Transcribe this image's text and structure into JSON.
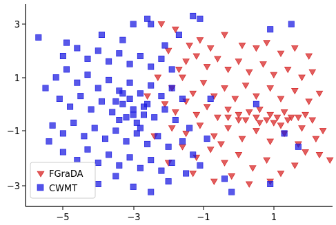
{
  "chart_data": {
    "type": "scatter",
    "title": "",
    "xlabel": "",
    "ylabel": "",
    "xlim": [
      -6.0,
      2.7
    ],
    "ylim": [
      -3.55,
      3.55
    ],
    "xticks": [
      -5,
      -3,
      -1,
      1
    ],
    "yticks": [
      -3,
      -1,
      1,
      3
    ],
    "xtick_labels": [
      "−5",
      "−3",
      "−1",
      "1"
    ],
    "ytick_labels": [
      "−3",
      "−1",
      "1",
      "3"
    ],
    "legend_position": "lower-left",
    "series": [
      {
        "name": "FGraDA",
        "marker": "triangle-down",
        "color": "#d62020",
        "points": [
          [
            -2.2,
            3.0
          ],
          [
            -1.8,
            2.8
          ],
          [
            -1.4,
            2.2
          ],
          [
            -1.1,
            2.4
          ],
          [
            -0.8,
            2.1
          ],
          [
            -0.4,
            2.6
          ],
          [
            0.1,
            2.2
          ],
          [
            0.5,
            2.1
          ],
          [
            0.8,
            2.3
          ],
          [
            1.2,
            1.9
          ],
          [
            1.6,
            2.1
          ],
          [
            2.0,
            1.8
          ],
          [
            -2.0,
            2.0
          ],
          [
            -1.5,
            1.6
          ],
          [
            -1.2,
            1.8
          ],
          [
            -0.9,
            1.4
          ],
          [
            -0.6,
            1.7
          ],
          [
            -0.3,
            1.3
          ],
          [
            0.0,
            1.6
          ],
          [
            0.3,
            1.2
          ],
          [
            0.7,
            1.5
          ],
          [
            1.0,
            1.1
          ],
          [
            1.4,
            1.3
          ],
          [
            1.8,
            1.0
          ],
          [
            2.1,
            1.2
          ],
          [
            -2.3,
            1.0
          ],
          [
            -1.9,
            0.6
          ],
          [
            -1.6,
            1.0
          ],
          [
            -1.3,
            0.4
          ],
          [
            -1.0,
            0.8
          ],
          [
            -0.7,
            0.3
          ],
          [
            -0.4,
            0.6
          ],
          [
            -0.1,
            0.2
          ],
          [
            0.2,
            0.7
          ],
          [
            0.5,
            0.3
          ],
          [
            0.9,
            0.6
          ],
          [
            1.2,
            0.2
          ],
          [
            1.6,
            0.5
          ],
          [
            2.0,
            0.1
          ],
          [
            2.3,
            0.4
          ],
          [
            -2.1,
            0.0
          ],
          [
            -1.8,
            -0.3
          ],
          [
            -1.5,
            0.1
          ],
          [
            -1.2,
            -0.4
          ],
          [
            -0.9,
            -0.1
          ],
          [
            -0.6,
            -0.5
          ],
          [
            -0.3,
            -0.2
          ],
          [
            0.0,
            -0.6
          ],
          [
            0.3,
            -0.3
          ],
          [
            0.6,
            -0.7
          ],
          [
            0.9,
            -0.4
          ],
          [
            1.2,
            -0.8
          ],
          [
            1.5,
            -0.5
          ],
          [
            1.8,
            -0.9
          ],
          [
            2.1,
            -0.6
          ],
          [
            2.4,
            -1.0
          ],
          [
            -1.9,
            -0.9
          ],
          [
            -1.5,
            -1.1
          ],
          [
            -1.1,
            -0.8
          ],
          [
            -0.7,
            -1.2
          ],
          [
            -0.3,
            -0.9
          ],
          [
            0.1,
            -1.3
          ],
          [
            0.5,
            -1.0
          ],
          [
            0.9,
            -1.4
          ],
          [
            1.3,
            -1.1
          ],
          [
            1.7,
            -1.5
          ],
          [
            2.2,
            -1.3
          ],
          [
            -1.6,
            -1.6
          ],
          [
            -1.2,
            -2.0
          ],
          [
            -0.8,
            -1.7
          ],
          [
            -0.4,
            -2.2
          ],
          [
            0.0,
            -1.9
          ],
          [
            0.4,
            -2.4
          ],
          [
            0.8,
            -2.1
          ],
          [
            1.2,
            -2.6
          ],
          [
            1.6,
            -2.3
          ],
          [
            -1.3,
            -2.6
          ],
          [
            -0.7,
            -2.9
          ],
          [
            -0.2,
            -2.7
          ],
          [
            0.3,
            -3.0
          ],
          [
            0.9,
            -2.9
          ],
          [
            0.2,
            -0.6
          ],
          [
            0.5,
            -0.5
          ],
          [
            0.8,
            -0.6
          ],
          [
            1.1,
            -0.5
          ],
          [
            1.4,
            -0.6
          ],
          [
            1.7,
            -0.5
          ],
          [
            0.0,
            -0.4
          ],
          [
            -0.3,
            -0.5
          ],
          [
            1.0,
            -0.7
          ],
          [
            1.3,
            -0.3
          ],
          [
            0.6,
            -0.2
          ],
          [
            1.9,
            -0.4
          ],
          [
            2.6,
            -2.1
          ],
          [
            2.3,
            -1.9
          ],
          [
            -2.6,
            0.3
          ],
          [
            -2.4,
            -1.2
          ],
          [
            -2.0,
            -2.2
          ],
          [
            -1.7,
            1.3
          ],
          [
            -0.5,
            -1.5
          ],
          [
            1.9,
            -1.8
          ]
        ]
      },
      {
        "name": "CWMT",
        "marker": "square",
        "color": "#1818e0",
        "points": [
          [
            -5.7,
            2.5
          ],
          [
            -1.3,
            3.3
          ],
          [
            -1.1,
            3.2
          ],
          [
            -2.6,
            3.2
          ],
          [
            -2.5,
            3.0
          ],
          [
            -3.0,
            3.0
          ],
          [
            0.9,
            2.8
          ],
          [
            1.5,
            3.0
          ],
          [
            -5.0,
            1.8
          ],
          [
            -4.6,
            2.1
          ],
          [
            -4.3,
            1.7
          ],
          [
            -4.0,
            2.0
          ],
          [
            -3.7,
            1.6
          ],
          [
            -3.4,
            1.9
          ],
          [
            -3.1,
            1.5
          ],
          [
            -2.8,
            1.8
          ],
          [
            -2.5,
            1.4
          ],
          [
            -2.2,
            1.7
          ],
          [
            -1.9,
            1.3
          ],
          [
            -5.2,
            1.0
          ],
          [
            -4.9,
            1.3
          ],
          [
            -4.6,
            0.8
          ],
          [
            -4.3,
            1.1
          ],
          [
            -4.0,
            0.6
          ],
          [
            -3.7,
            0.9
          ],
          [
            -3.4,
            0.5
          ],
          [
            -3.1,
            0.8
          ],
          [
            -2.8,
            0.4
          ],
          [
            -2.5,
            0.7
          ],
          [
            -2.2,
            0.3
          ],
          [
            -1.9,
            0.6
          ],
          [
            -1.6,
            0.2
          ],
          [
            -5.1,
            0.2
          ],
          [
            -4.8,
            -0.1
          ],
          [
            -4.5,
            0.3
          ],
          [
            -4.2,
            -0.2
          ],
          [
            -3.9,
            0.1
          ],
          [
            -3.6,
            -0.3
          ],
          [
            -3.3,
            0.0
          ],
          [
            -3.0,
            -0.4
          ],
          [
            -2.7,
            -0.1
          ],
          [
            -2.4,
            -0.5
          ],
          [
            -2.1,
            -0.2
          ],
          [
            -1.8,
            -0.6
          ],
          [
            -5.3,
            -0.8
          ],
          [
            -5.0,
            -1.1
          ],
          [
            -4.7,
            -0.7
          ],
          [
            -4.4,
            -1.2
          ],
          [
            -4.1,
            -0.9
          ],
          [
            -3.8,
            -1.3
          ],
          [
            -3.5,
            -1.0
          ],
          [
            -3.2,
            -1.4
          ],
          [
            -2.9,
            -1.1
          ],
          [
            -2.6,
            -1.5
          ],
          [
            -2.3,
            -1.2
          ],
          [
            -2.0,
            -1.6
          ],
          [
            -5.0,
            -1.8
          ],
          [
            -4.6,
            -2.1
          ],
          [
            -4.3,
            -1.7
          ],
          [
            -4.0,
            -2.2
          ],
          [
            -3.7,
            -1.9
          ],
          [
            -3.4,
            -2.3
          ],
          [
            -3.1,
            -2.0
          ],
          [
            -2.8,
            -2.4
          ],
          [
            -2.5,
            -2.1
          ],
          [
            -2.2,
            -2.5
          ],
          [
            -1.9,
            -2.2
          ],
          [
            -4.5,
            -2.8
          ],
          [
            -4.0,
            -3.0
          ],
          [
            -3.5,
            -2.7
          ],
          [
            -3.0,
            -3.1
          ],
          [
            -2.5,
            -3.3
          ],
          [
            -2.0,
            -2.9
          ],
          [
            -1.5,
            -2.6
          ],
          [
            -3.2,
            -0.5
          ],
          [
            -3.0,
            -0.2
          ],
          [
            -2.9,
            -0.7
          ],
          [
            -2.7,
            -0.4
          ],
          [
            -3.4,
            -0.6
          ],
          [
            -3.1,
            0.2
          ],
          [
            -2.6,
            0.0
          ],
          [
            -3.3,
            0.4
          ],
          [
            -2.8,
            -0.9
          ],
          [
            -3.5,
            0.1
          ],
          [
            -1.3,
            -1.9
          ],
          [
            -1.1,
            -2.3
          ],
          [
            -0.9,
            -1.3
          ],
          [
            -1.4,
            -0.9
          ],
          [
            -1.6,
            -1.4
          ],
          [
            -0.4,
            -2.8
          ],
          [
            -0.2,
            -3.3
          ],
          [
            0.9,
            -3.0
          ],
          [
            1.7,
            -1.6
          ],
          [
            1.3,
            -1.1
          ],
          [
            -0.8,
            0.2
          ],
          [
            0.5,
            0.0
          ],
          [
            -5.4,
            -1.4
          ],
          [
            -5.5,
            0.6
          ],
          [
            -4.9,
            2.3
          ],
          [
            -3.9,
            2.6
          ],
          [
            -3.3,
            2.4
          ],
          [
            -2.1,
            2.2
          ],
          [
            -1.7,
            2.6
          ]
        ]
      }
    ]
  }
}
